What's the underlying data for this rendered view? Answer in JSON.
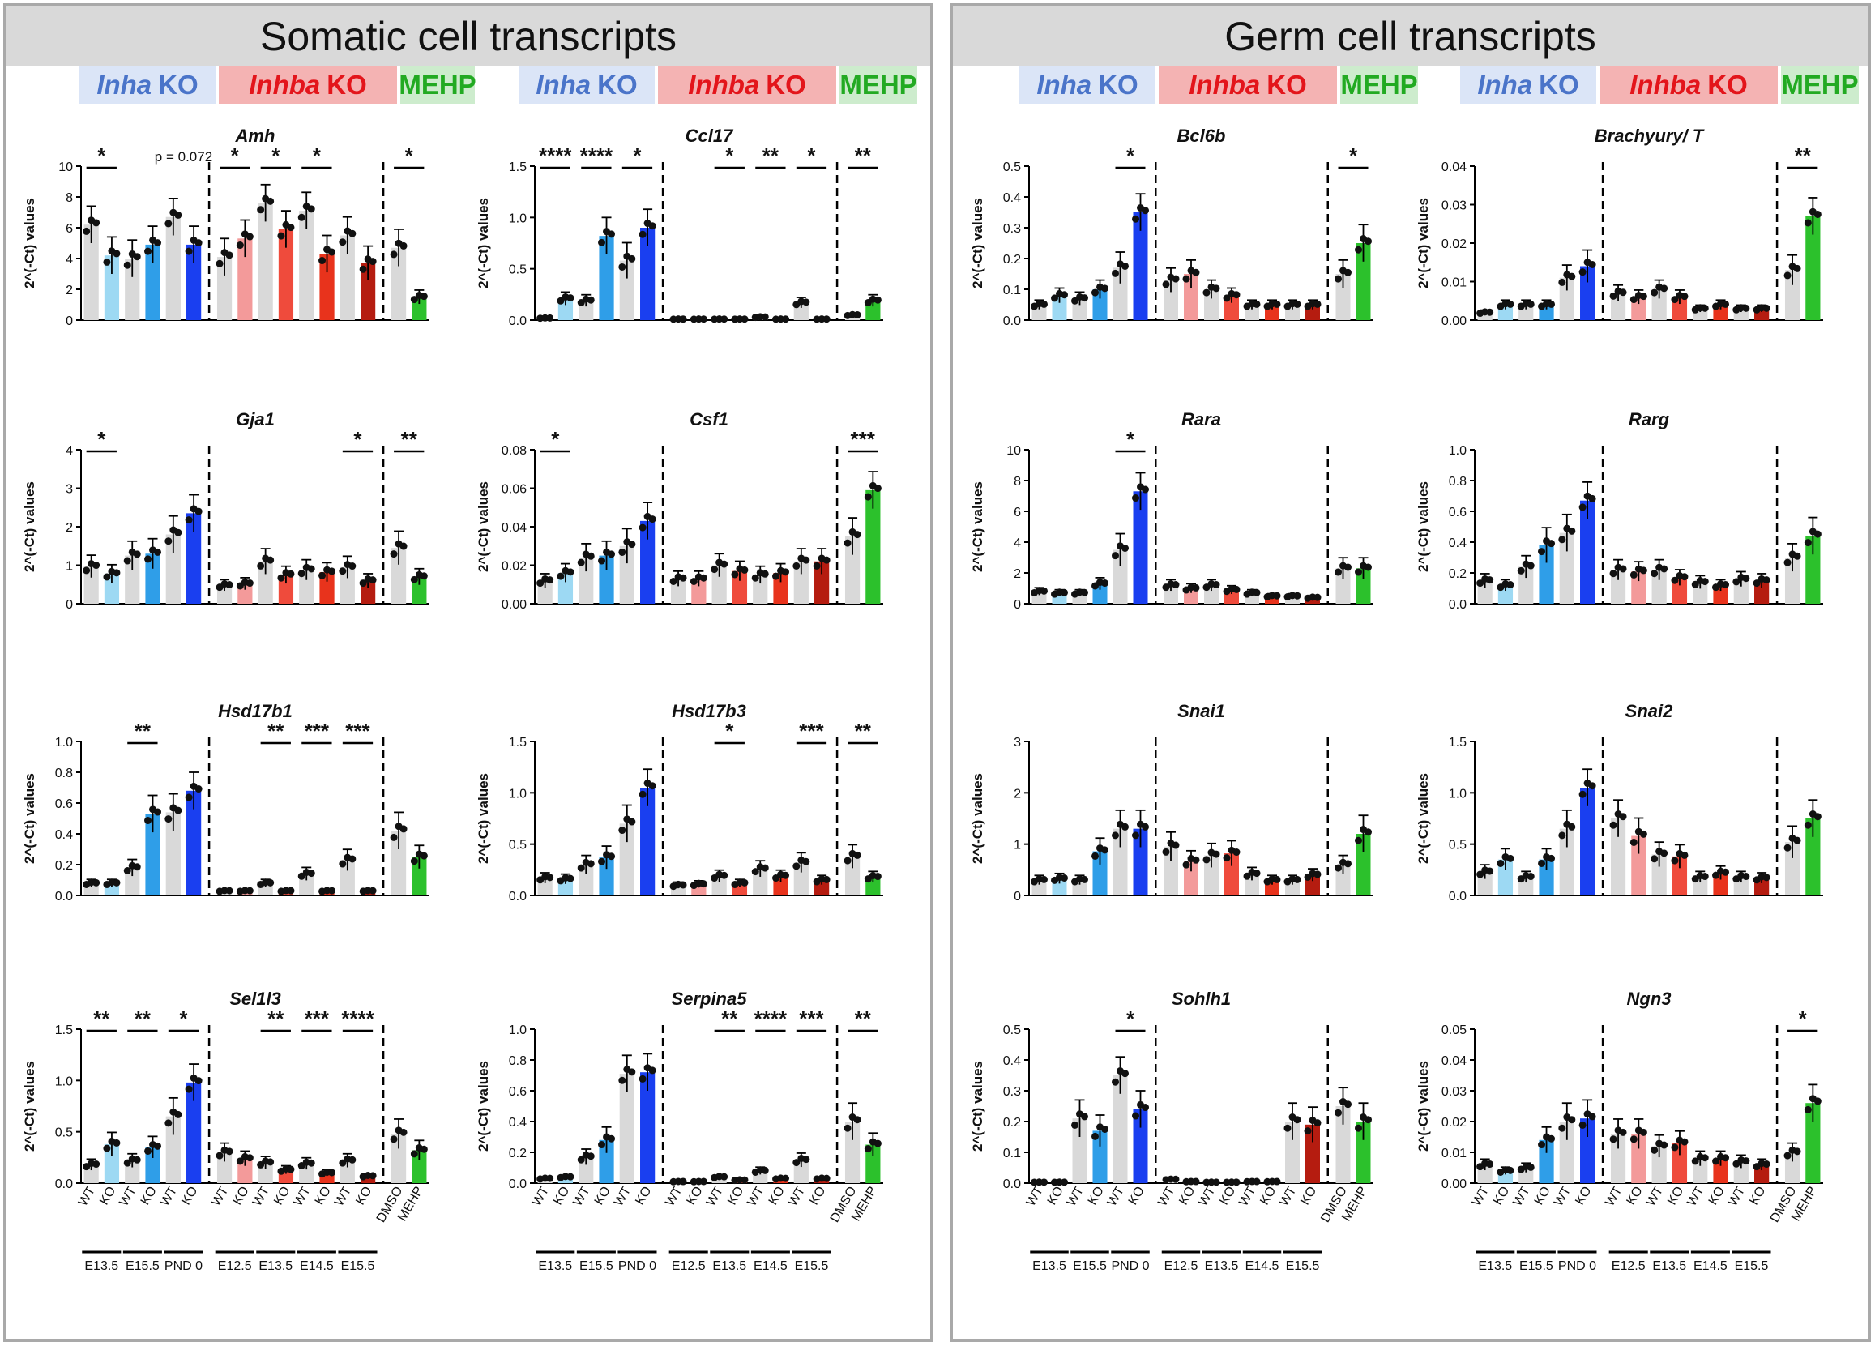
{
  "panels": {
    "somatic_title": "Somatic cell transcripts",
    "germ_title": "Germ cell transcripts"
  },
  "groups": {
    "inha_gene": "Inha",
    "inhba_gene": "Inhba",
    "ko_suffix": "KO",
    "mehp": "MEHP"
  },
  "colors": {
    "wt": "#d9d9d9",
    "inha": [
      "#9dd9f3",
      "#2f9ee8",
      "#1a3ff0"
    ],
    "inhba": [
      "#f39a9a",
      "#ef4b3c",
      "#e8331c",
      "#b51c10"
    ],
    "mehp": "#2cc12c"
  },
  "axis_common": {
    "ylabel": "2^(-Ct) values",
    "bar_labels": [
      "WT",
      "KO",
      "WT",
      "KO",
      "WT",
      "KO",
      "WT",
      "KO",
      "WT",
      "KO",
      "WT",
      "KO",
      "WT",
      "KO",
      "DMSO",
      "MEHP"
    ],
    "stage_labels": [
      "E13.5",
      "E15.5",
      "PND 0",
      "E12.5",
      "E13.5",
      "E14.5",
      "E15.5"
    ]
  },
  "chart_data": [
    {
      "type": "bar",
      "title": "Amh",
      "ylim": [
        0,
        10
      ],
      "yticks": [
        "0",
        "2",
        "4",
        "6",
        "8",
        "10"
      ],
      "values": [
        6.2,
        4.2,
        4.0,
        4.9,
        6.7,
        4.9,
        4.1,
        5.3,
        7.6,
        5.9,
        7.1,
        4.3,
        5.5,
        3.7,
        4.7,
        1.5
      ],
      "sig": [
        {
          "a": 0,
          "b": 1,
          "label": "*"
        },
        {
          "a": 4,
          "b": 5,
          "label": "p = 0.072"
        },
        {
          "a": 6,
          "b": 7,
          "label": "*"
        },
        {
          "a": 8,
          "b": 9,
          "label": "*"
        },
        {
          "a": 10,
          "b": 11,
          "label": "*"
        },
        {
          "a": 14,
          "b": 15,
          "label": "*"
        }
      ]
    },
    {
      "type": "bar",
      "title": "Ccl17",
      "ylim": [
        0,
        1.5
      ],
      "yticks": [
        "0.0",
        "0.5",
        "1.0",
        "1.5"
      ],
      "values": [
        0.02,
        0.21,
        0.19,
        0.82,
        0.58,
        0.9,
        0.01,
        0.01,
        0.01,
        0.01,
        0.03,
        0.01,
        0.17,
        0.01,
        0.05,
        0.19
      ],
      "sig": [
        {
          "a": 0,
          "b": 1,
          "label": "****"
        },
        {
          "a": 2,
          "b": 3,
          "label": "****"
        },
        {
          "a": 4,
          "b": 5,
          "label": "*"
        },
        {
          "a": 8,
          "b": 9,
          "label": "*"
        },
        {
          "a": 10,
          "b": 11,
          "label": "**"
        },
        {
          "a": 12,
          "b": 13,
          "label": "*"
        },
        {
          "a": 14,
          "b": 15,
          "label": "**"
        }
      ]
    },
    {
      "type": "bar",
      "title": "Gja1",
      "ylim": [
        0,
        4
      ],
      "yticks": [
        "0",
        "1",
        "2",
        "3",
        "4"
      ],
      "values": [
        0.97,
        0.78,
        1.25,
        1.3,
        1.8,
        2.35,
        0.48,
        0.52,
        1.1,
        0.75,
        0.88,
        0.82,
        0.95,
        0.6,
        1.45,
        0.7
      ],
      "sig": [
        {
          "a": 0,
          "b": 1,
          "label": "*"
        },
        {
          "a": 12,
          "b": 13,
          "label": "*"
        },
        {
          "a": 14,
          "b": 15,
          "label": "**"
        }
      ]
    },
    {
      "type": "bar",
      "title": "Csf1",
      "ylim": [
        0,
        0.08
      ],
      "yticks": [
        "0.00",
        "0.02",
        "0.04",
        "0.06",
        "0.08"
      ],
      "values": [
        0.012,
        0.016,
        0.024,
        0.025,
        0.03,
        0.043,
        0.013,
        0.013,
        0.02,
        0.017,
        0.015,
        0.016,
        0.022,
        0.022,
        0.035,
        0.059
      ],
      "sig": [
        {
          "a": 0,
          "b": 1,
          "label": "*"
        },
        {
          "a": 14,
          "b": 15,
          "label": "***"
        }
      ]
    },
    {
      "type": "bar",
      "title": "Hsd17b1",
      "ylim": [
        0,
        1.0
      ],
      "yticks": [
        "0.0",
        "0.2",
        "0.4",
        "0.6",
        "0.8",
        "1.0"
      ],
      "values": [
        0.08,
        0.08,
        0.18,
        0.53,
        0.54,
        0.68,
        0.03,
        0.03,
        0.08,
        0.03,
        0.14,
        0.03,
        0.23,
        0.03,
        0.42,
        0.25
      ],
      "sig": [
        {
          "a": 2,
          "b": 3,
          "label": "**"
        },
        {
          "a": 8,
          "b": 9,
          "label": "**"
        },
        {
          "a": 10,
          "b": 11,
          "label": "***"
        },
        {
          "a": 12,
          "b": 13,
          "label": "***"
        }
      ]
    },
    {
      "type": "bar",
      "title": "Hsd17b3",
      "ylim": [
        0,
        1.5
      ],
      "yticks": [
        "0.0",
        "0.5",
        "1.0",
        "1.5"
      ],
      "values": [
        0.17,
        0.16,
        0.3,
        0.37,
        0.7,
        1.05,
        0.1,
        0.11,
        0.19,
        0.12,
        0.26,
        0.19,
        0.32,
        0.15,
        0.38,
        0.18
      ],
      "sig": [
        {
          "a": 8,
          "b": 9,
          "label": "*"
        },
        {
          "a": 12,
          "b": 13,
          "label": "***"
        },
        {
          "a": 14,
          "b": 15,
          "label": "**"
        }
      ]
    },
    {
      "type": "bar",
      "title": "Sel1l3",
      "ylim": [
        0,
        1.5
      ],
      "yticks": [
        "0.0",
        "0.5",
        "1.0",
        "1.5"
      ],
      "values": [
        0.18,
        0.38,
        0.22,
        0.35,
        0.65,
        0.98,
        0.3,
        0.24,
        0.2,
        0.13,
        0.19,
        0.1,
        0.22,
        0.07,
        0.48,
        0.32
      ],
      "sig": [
        {
          "a": 0,
          "b": 1,
          "label": "**"
        },
        {
          "a": 2,
          "b": 3,
          "label": "**"
        },
        {
          "a": 4,
          "b": 5,
          "label": "*"
        },
        {
          "a": 8,
          "b": 9,
          "label": "**"
        },
        {
          "a": 10,
          "b": 11,
          "label": "***"
        },
        {
          "a": 12,
          "b": 13,
          "label": "****"
        }
      ]
    },
    {
      "type": "bar",
      "title": "Serpina5",
      "ylim": [
        0,
        1.0
      ],
      "yticks": [
        "0.0",
        "0.2",
        "0.4",
        "0.6",
        "0.8",
        "1.0"
      ],
      "values": [
        0.03,
        0.04,
        0.17,
        0.28,
        0.71,
        0.72,
        0.01,
        0.01,
        0.04,
        0.02,
        0.08,
        0.03,
        0.15,
        0.03,
        0.4,
        0.25
      ],
      "sig": [
        {
          "a": 8,
          "b": 9,
          "label": "**"
        },
        {
          "a": 10,
          "b": 11,
          "label": "****"
        },
        {
          "a": 12,
          "b": 13,
          "label": "***"
        },
        {
          "a": 14,
          "b": 15,
          "label": "**"
        }
      ]
    },
    {
      "type": "bar",
      "title": "Bcl6b",
      "ylim": [
        0,
        0.5
      ],
      "yticks": [
        "0.0",
        "0.1",
        "0.2",
        "0.3",
        "0.4",
        "0.5"
      ],
      "values": [
        0.05,
        0.08,
        0.07,
        0.1,
        0.17,
        0.35,
        0.13,
        0.15,
        0.1,
        0.08,
        0.05,
        0.05,
        0.05,
        0.05,
        0.15,
        0.25
      ],
      "sig": [
        {
          "a": 4,
          "b": 5,
          "label": "*"
        },
        {
          "a": 14,
          "b": 15,
          "label": "*"
        }
      ]
    },
    {
      "type": "bar",
      "title": "Brachyury/ T",
      "ylim": [
        0,
        0.04
      ],
      "yticks": [
        "0.00",
        "0.01",
        "0.02",
        "0.03",
        "0.04"
      ],
      "values": [
        0.002,
        0.004,
        0.004,
        0.004,
        0.011,
        0.014,
        0.007,
        0.006,
        0.008,
        0.006,
        0.003,
        0.004,
        0.003,
        0.003,
        0.013,
        0.027
      ],
      "sig": [
        {
          "a": 14,
          "b": 15,
          "label": "**"
        }
      ]
    },
    {
      "type": "bar",
      "title": "Rara",
      "ylim": [
        0,
        10
      ],
      "yticks": [
        "0",
        "2",
        "4",
        "6",
        "8",
        "10"
      ],
      "values": [
        0.8,
        0.7,
        0.7,
        1.3,
        3.5,
        7.3,
        1.2,
        1.0,
        1.2,
        0.9,
        0.7,
        0.5,
        0.5,
        0.4,
        2.3,
        2.3
      ],
      "sig": [
        {
          "a": 4,
          "b": 5,
          "label": "*"
        }
      ]
    },
    {
      "type": "bar",
      "title": "Rarg",
      "ylim": [
        0,
        1.0
      ],
      "yticks": [
        "0.0",
        "0.2",
        "0.4",
        "0.6",
        "0.8",
        "1.0"
      ],
      "values": [
        0.15,
        0.12,
        0.24,
        0.38,
        0.46,
        0.67,
        0.22,
        0.21,
        0.22,
        0.17,
        0.14,
        0.12,
        0.16,
        0.15,
        0.3,
        0.44
      ],
      "sig": []
    },
    {
      "type": "bar",
      "title": "Snai1",
      "ylim": [
        0,
        3
      ],
      "yticks": [
        "0",
        "1",
        "2",
        "3"
      ],
      "values": [
        0.3,
        0.33,
        0.3,
        0.86,
        1.3,
        1.3,
        0.95,
        0.67,
        0.78,
        0.82,
        0.42,
        0.3,
        0.3,
        0.4,
        0.6,
        1.2
      ],
      "sig": []
    },
    {
      "type": "bar",
      "title": "Snai2",
      "ylim": [
        0,
        1.5
      ],
      "yticks": [
        "0.0",
        "0.5",
        "1.0",
        "1.5"
      ],
      "values": [
        0.23,
        0.35,
        0.18,
        0.35,
        0.65,
        1.05,
        0.75,
        0.58,
        0.4,
        0.38,
        0.18,
        0.22,
        0.18,
        0.17,
        0.52,
        0.75
      ],
      "sig": []
    },
    {
      "type": "bar",
      "title": "Sohlh1",
      "ylim": [
        0,
        0.5
      ],
      "yticks": [
        "0.0",
        "0.1",
        "0.2",
        "0.3",
        "0.4",
        "0.5"
      ],
      "values": [
        0.003,
        0.003,
        0.21,
        0.17,
        0.35,
        0.24,
        0.012,
        0.005,
        0.003,
        0.003,
        0.005,
        0.005,
        0.2,
        0.19,
        0.25,
        0.2
      ],
      "sig": [
        {
          "a": 4,
          "b": 5,
          "label": "*"
        }
      ]
    },
    {
      "type": "bar",
      "title": "Ngn3",
      "ylim": [
        0,
        0.05
      ],
      "yticks": [
        "0.00",
        "0.01",
        "0.02",
        "0.03",
        "0.04",
        "0.05"
      ],
      "values": [
        0.006,
        0.004,
        0.005,
        0.014,
        0.02,
        0.021,
        0.016,
        0.016,
        0.012,
        0.013,
        0.008,
        0.008,
        0.007,
        0.006,
        0.01,
        0.026
      ],
      "sig": [
        {
          "a": 14,
          "b": 15,
          "label": "*"
        }
      ]
    }
  ]
}
